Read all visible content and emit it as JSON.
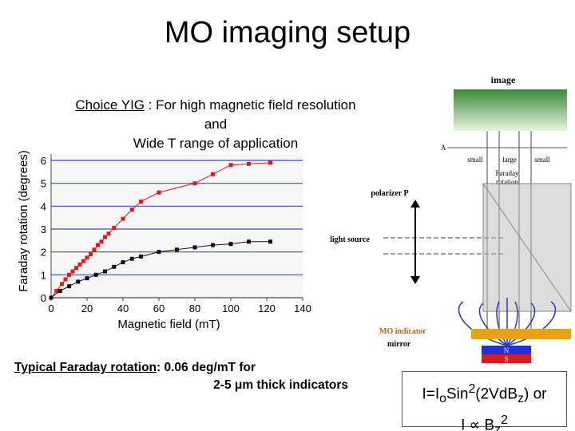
{
  "slide": {
    "title": "MO imaging setup",
    "choice": {
      "underlined": "Choice YIG",
      "rest": " : For high magnetic field resolution",
      "line2": "and",
      "line3": "Wide T range of application"
    },
    "typical": {
      "underlined": "Typical Faraday rotation",
      "rest": ": 0.06 deg/mT for",
      "line2": "2-5 μm thick indicators"
    },
    "formula": {
      "line1": [
        "I=I",
        "o",
        "Sin",
        "2",
        "(2VdB",
        "z",
        ") or"
      ],
      "line2": [
        "I ∝ B",
        "z",
        "2"
      ]
    },
    "diagram": {
      "image": "image",
      "a": "A",
      "small_left": "small",
      "large": "large",
      "small_right": "small",
      "faraday": [
        "Faraday",
        "rotation"
      ],
      "polarizer": "polarizer P",
      "light_source": "light source",
      "mo_indicator": "MO indicator",
      "mirror": "mirror",
      "n": "N",
      "s": "S"
    }
  },
  "chart_data": {
    "type": "scatter",
    "xlabel": "Magnetic field (mT)",
    "ylabel": "Faraday rotation (degrees)",
    "xlim": [
      0,
      140
    ],
    "xticks": [
      0,
      20,
      40,
      60,
      80,
      100,
      120,
      140
    ],
    "ylim": [
      0,
      6
    ],
    "yticks": [
      0,
      1,
      2,
      3,
      4,
      5,
      6
    ],
    "grid": true,
    "grid_color": "#3a4fc0",
    "series": [
      {
        "color": "#e8141c",
        "x": [
          0,
          3,
          6,
          8,
          10,
          12,
          14,
          16,
          18,
          20,
          22,
          24,
          26,
          28,
          30,
          32,
          35,
          40,
          45,
          50,
          60,
          80,
          90,
          100,
          110,
          122
        ],
        "values": [
          0,
          0.3,
          0.6,
          0.8,
          1,
          1.15,
          1.3,
          1.45,
          1.6,
          1.75,
          1.9,
          2.1,
          2.3,
          2.45,
          2.65,
          2.8,
          3.05,
          3.45,
          3.85,
          4.2,
          4.6,
          5.0,
          5.4,
          5.8,
          5.85,
          5.9
        ]
      },
      {
        "color": "#111111",
        "x": [
          0,
          5,
          10,
          15,
          20,
          25,
          30,
          35,
          40,
          45,
          50,
          60,
          70,
          80,
          90,
          100,
          110,
          122
        ],
        "values": [
          0,
          0.3,
          0.5,
          0.7,
          0.85,
          1.0,
          1.15,
          1.35,
          1.55,
          1.7,
          1.8,
          2.0,
          2.1,
          2.2,
          2.3,
          2.35,
          2.45,
          2.45
        ]
      }
    ]
  }
}
